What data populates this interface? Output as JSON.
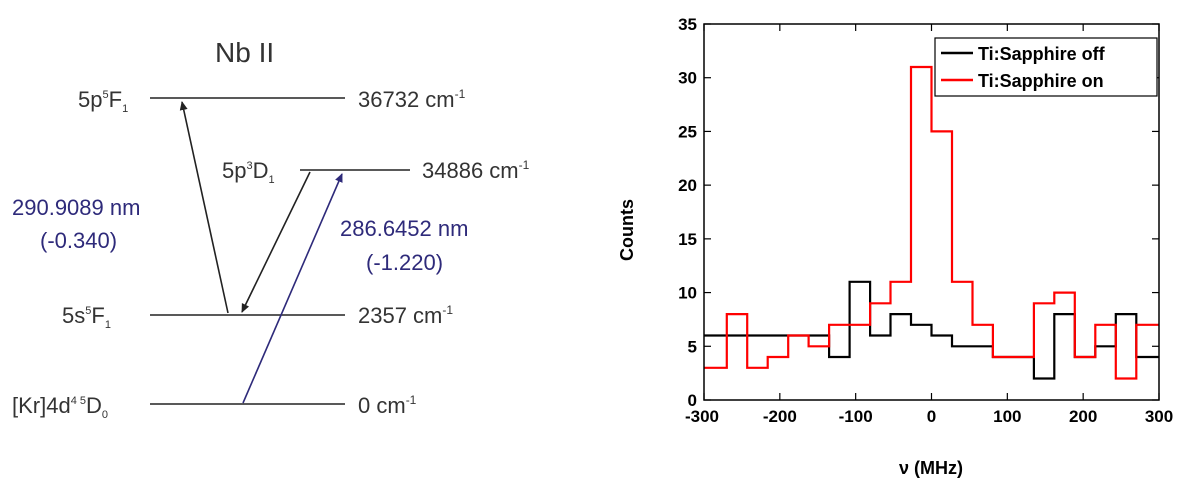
{
  "diagram": {
    "title": "Nb II",
    "levels": [
      {
        "term": {
          "config": "5p",
          "mult": "5",
          "letter": "F",
          "j": "1"
        },
        "energy": "36732 cm",
        "exp": "-1"
      },
      {
        "term": {
          "config": "5p",
          "mult": "3",
          "letter": "D",
          "j": "1"
        },
        "energy": "34886 cm",
        "exp": "-1"
      },
      {
        "term": {
          "config": "5s",
          "mult": "5",
          "letter": "F",
          "j": "1"
        },
        "energy": "2357 cm",
        "exp": "-1"
      },
      {
        "term": {
          "config": "[Kr]4d",
          "mult": "4 5",
          "letter": "D",
          "j": "0"
        },
        "energy": "0 cm",
        "exp": "-1"
      }
    ],
    "transitions": [
      {
        "wavelength": "290.9089 nm",
        "value": "(-0.340)",
        "color": "#2e2a7a"
      },
      {
        "wavelength": "286.6452 nm",
        "value": "(-1.220)",
        "color": "#2e2a7a"
      }
    ],
    "arrow_color": "#2e2a7a"
  },
  "chart_data": {
    "type": "line",
    "step": true,
    "title": "",
    "xlabel": "ν (MHz)",
    "ylabel": "Counts",
    "xlim": [
      -300,
      300
    ],
    "ylim": [
      0,
      35
    ],
    "xticks": [
      -300,
      -200,
      -100,
      0,
      100,
      200,
      300
    ],
    "yticks": [
      0,
      5,
      10,
      15,
      20,
      25,
      30,
      35
    ],
    "grid": false,
    "legend_position": "top-right",
    "bin_edges": [
      -300,
      -270,
      -243,
      -216,
      -189,
      -162,
      -135,
      -108,
      -81,
      -54,
      -27,
      0,
      27,
      54,
      81,
      108,
      135,
      162,
      189,
      216,
      243,
      270,
      300
    ],
    "series": [
      {
        "name": "Ti:Sapphire off",
        "color": "#000000",
        "values": [
          6,
          6,
          6,
          6,
          6,
          6,
          4,
          11,
          6,
          8,
          7,
          6,
          5,
          5,
          4,
          4,
          2,
          8,
          4,
          5,
          8,
          4
        ]
      },
      {
        "name": "Ti:Sapphire on",
        "color": "#ff0000",
        "values": [
          3,
          8,
          3,
          4,
          6,
          5,
          7,
          7,
          9,
          11,
          31,
          25,
          11,
          7,
          4,
          4,
          9,
          10,
          4,
          7,
          2,
          7
        ]
      }
    ]
  }
}
